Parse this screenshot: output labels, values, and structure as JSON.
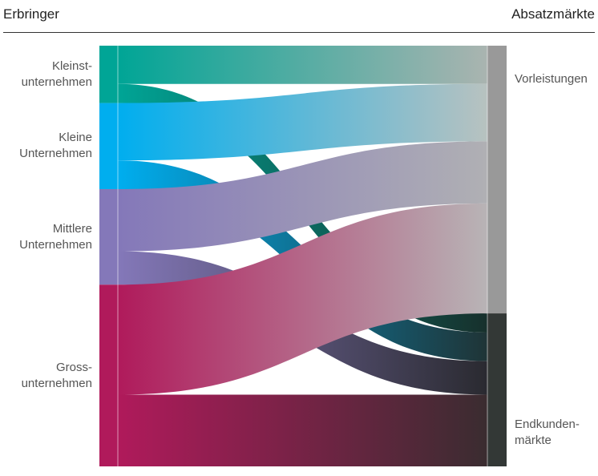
{
  "header": {
    "left_title": "Erbringer",
    "right_title": "Absatzmärkte"
  },
  "sources": [
    {
      "id": "kleinst",
      "lines": [
        "Kleinst-",
        "unternehmen"
      ],
      "color": "#00a596"
    },
    {
      "id": "kleine",
      "lines": [
        "Kleine",
        "Unternehmen"
      ],
      "color": "#00aeef"
    },
    {
      "id": "mittlere",
      "lines": [
        "Mittlere",
        "Unternehmen"
      ],
      "color": "#8478b9"
    },
    {
      "id": "gross",
      "lines": [
        "Gross-",
        "unternehmen"
      ],
      "color": "#b01a5b"
    }
  ],
  "targets": [
    {
      "id": "vorleistungen",
      "lines": [
        "Vorleistungen"
      ],
      "color": "#999999"
    },
    {
      "id": "endkunden",
      "lines": [
        "Endkunden-",
        "märkte"
      ],
      "color": "#333836"
    }
  ],
  "flows": [
    {
      "source": "kleinst",
      "target": "vorleistungen",
      "value": 8,
      "end_color": "#aab4b0"
    },
    {
      "source": "kleinst",
      "target": "endkunden",
      "value": 4,
      "end_color": "#17302c"
    },
    {
      "source": "kleine",
      "target": "vorleistungen",
      "value": 12,
      "end_color": "#b8c2c0"
    },
    {
      "source": "kleine",
      "target": "endkunden",
      "value": 6,
      "end_color": "#1f3436"
    },
    {
      "source": "mittlere",
      "target": "vorleistungen",
      "value": 13,
      "end_color": "#b0b0b4"
    },
    {
      "source": "mittlere",
      "target": "endkunden",
      "value": 7,
      "end_color": "#2a2a30"
    },
    {
      "source": "gross",
      "target": "vorleistungen",
      "value": 23,
      "end_color": "#b8b4b6"
    },
    {
      "source": "gross",
      "target": "endkunden",
      "value": 15,
      "end_color": "#3a2c30"
    }
  ]
}
